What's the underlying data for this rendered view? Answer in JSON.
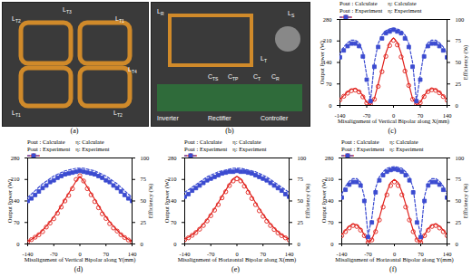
{
  "chart_data": [
    {
      "type": "line",
      "caption": "(c)",
      "x_label": "Misalignment of Vertical Bipolar along X(mm)",
      "y_label": "Output Power (W)",
      "y2_label": "Efficiency (%)",
      "xlim": [
        -140,
        140
      ],
      "xticks": [
        -140,
        -70,
        0,
        70,
        140
      ],
      "ylim": [
        0,
        280
      ],
      "yticks": [
        0,
        70,
        140,
        210,
        280
      ],
      "y2lim": [
        0,
        100
      ],
      "y2ticks": [
        0,
        25,
        50,
        75,
        100
      ],
      "x": [
        -140,
        -130,
        -120,
        -110,
        -100,
        -90,
        -80,
        -70,
        -60,
        -50,
        -40,
        -30,
        -20,
        -10,
        0,
        10,
        20,
        30,
        40,
        50,
        60,
        70,
        80,
        90,
        100,
        110,
        120,
        130,
        140
      ],
      "series": [
        {
          "name": "Pout : Calculate",
          "type": "line",
          "color": "#e0201b",
          "line_style": "solid",
          "values": [
            20,
            32,
            45,
            53,
            55,
            48,
            32,
            10,
            2,
            22,
            70,
            120,
            170,
            205,
            220,
            205,
            170,
            120,
            70,
            22,
            2,
            10,
            32,
            48,
            55,
            53,
            45,
            32,
            20
          ]
        },
        {
          "name": "η: Calculate",
          "type": "line",
          "color": "#3b4bd0",
          "line_style": "dashed",
          "axis": "y2",
          "values": [
            60,
            68,
            73,
            76,
            76,
            73,
            62,
            35,
            5,
            50,
            72,
            82,
            87,
            89,
            90,
            89,
            87,
            82,
            72,
            50,
            5,
            35,
            62,
            73,
            76,
            76,
            73,
            68,
            60
          ]
        },
        {
          "name": "Pout : Experiment",
          "type": "scatter",
          "color": "#e0201b",
          "marker": "circle_open",
          "values": [
            18,
            30,
            40,
            48,
            50,
            44,
            28,
            8,
            3,
            20,
            62,
            110,
            160,
            195,
            212,
            197,
            158,
            112,
            65,
            20,
            3,
            9,
            29,
            45,
            51,
            49,
            41,
            29,
            17
          ]
        },
        {
          "name": "η: Experiment",
          "type": "scatter",
          "color": "#3b4bd0",
          "marker": "square",
          "axis": "y2",
          "values": [
            56,
            64,
            69,
            72,
            72,
            69,
            57,
            30,
            5,
            45,
            68,
            78,
            84,
            86,
            88,
            86,
            84,
            78,
            68,
            45,
            5,
            30,
            57,
            69,
            72,
            72,
            69,
            64,
            56
          ]
        }
      ]
    },
    {
      "type": "line",
      "caption": "(d)",
      "x_label": "Misalignment of Vertical Bipolar along Y(mm)",
      "y_label": "Output Power (W)",
      "y2_label": "Efficiency (%)",
      "xlim": [
        -140,
        140
      ],
      "xticks": [
        -140,
        -70,
        0,
        70,
        140
      ],
      "ylim": [
        0,
        280
      ],
      "yticks": [
        0,
        70,
        140,
        210,
        280
      ],
      "y2lim": [
        0,
        100
      ],
      "y2ticks": [
        0,
        25,
        50,
        75,
        100
      ],
      "x": [
        -140,
        -130,
        -120,
        -110,
        -100,
        -90,
        -80,
        -70,
        -60,
        -50,
        -40,
        -30,
        -20,
        -10,
        0,
        10,
        20,
        30,
        40,
        50,
        60,
        70,
        80,
        90,
        100,
        110,
        120,
        130,
        140
      ],
      "series": [
        {
          "name": "Pout : Calculate",
          "type": "line",
          "color": "#e0201b",
          "line_style": "solid",
          "values": [
            8,
            15,
            23,
            33,
            45,
            58,
            72,
            88,
            105,
            125,
            145,
            165,
            185,
            205,
            220,
            205,
            185,
            165,
            145,
            125,
            105,
            88,
            72,
            58,
            45,
            33,
            23,
            15,
            8
          ]
        },
        {
          "name": "η: Calculate",
          "type": "line",
          "color": "#3b4bd0",
          "line_style": "dashed",
          "axis": "y2",
          "values": [
            54,
            58,
            62,
            66,
            70,
            73,
            76,
            79,
            81,
            83,
            85,
            86,
            87,
            88,
            88,
            88,
            87,
            86,
            85,
            83,
            81,
            79,
            76,
            73,
            70,
            66,
            62,
            58,
            54
          ]
        },
        {
          "name": "Pout : Experiment",
          "type": "scatter",
          "color": "#e0201b",
          "marker": "circle_open",
          "values": [
            7,
            14,
            22,
            30,
            40,
            55,
            68,
            82,
            100,
            120,
            140,
            158,
            180,
            210,
            222,
            205,
            180,
            160,
            138,
            118,
            98,
            83,
            66,
            52,
            42,
            30,
            21,
            13,
            7
          ]
        },
        {
          "name": "η: Experiment",
          "type": "scatter",
          "color": "#3b4bd0",
          "marker": "square",
          "axis": "y2",
          "values": [
            50,
            53,
            57,
            61,
            65,
            68,
            72,
            74,
            77,
            79,
            81,
            82,
            83,
            84,
            85,
            84,
            83,
            82,
            81,
            79,
            77,
            74,
            72,
            68,
            65,
            61,
            57,
            53,
            50
          ]
        }
      ]
    },
    {
      "type": "line",
      "caption": "(e)",
      "x_label": "Misalignment of Horizontal Bipolar along X(mm)",
      "y_label": "Output Power (W)",
      "y2_label": "Efficiency (%)",
      "xlim": [
        -140,
        140
      ],
      "xticks": [
        -140,
        -70,
        0,
        70,
        140
      ],
      "ylim": [
        0,
        280
      ],
      "yticks": [
        0,
        70,
        140,
        210,
        280
      ],
      "y2lim": [
        0,
        100
      ],
      "y2ticks": [
        0,
        25,
        50,
        75,
        100
      ],
      "x": [
        -140,
        -130,
        -120,
        -110,
        -100,
        -90,
        -80,
        -70,
        -60,
        -50,
        -40,
        -30,
        -20,
        -10,
        0,
        10,
        20,
        30,
        40,
        50,
        60,
        70,
        80,
        90,
        100,
        110,
        120,
        130,
        140
      ],
      "series": [
        {
          "name": "Pout : Calculate",
          "type": "line",
          "color": "#e0201b",
          "line_style": "solid",
          "values": [
            15,
            22,
            30,
            40,
            52,
            65,
            80,
            97,
            115,
            135,
            155,
            175,
            195,
            212,
            220,
            212,
            195,
            175,
            155,
            135,
            115,
            97,
            80,
            65,
            52,
            40,
            30,
            22,
            15
          ]
        },
        {
          "name": "η: Calculate",
          "type": "line",
          "color": "#3b4bd0",
          "line_style": "dashed",
          "axis": "y2",
          "values": [
            60,
            63,
            66,
            69,
            72,
            75,
            78,
            80,
            82,
            84,
            85,
            86,
            87,
            88,
            88,
            88,
            87,
            86,
            85,
            84,
            82,
            80,
            78,
            75,
            72,
            69,
            66,
            63,
            60
          ]
        },
        {
          "name": "Pout : Experiment",
          "type": "scatter",
          "color": "#e0201b",
          "marker": "circle_open",
          "values": [
            14,
            20,
            28,
            37,
            48,
            60,
            75,
            92,
            110,
            128,
            150,
            170,
            190,
            205,
            212,
            205,
            188,
            168,
            148,
            128,
            108,
            90,
            74,
            60,
            47,
            36,
            27,
            20,
            13
          ]
        },
        {
          "name": "η: Experiment",
          "type": "scatter",
          "color": "#3b4bd0",
          "marker": "square",
          "axis": "y2",
          "values": [
            55,
            58,
            62,
            65,
            68,
            71,
            74,
            76,
            78,
            80,
            82,
            83,
            84,
            84,
            85,
            84,
            84,
            83,
            82,
            80,
            78,
            76,
            74,
            71,
            68,
            65,
            62,
            58,
            55
          ]
        }
      ]
    },
    {
      "type": "line",
      "caption": "(f)",
      "x_label": "Misalignment of Horizontal Bipolar along Y(mm)",
      "y_label": "Output Power (W)",
      "y2_label": "Efficiency (%)",
      "xlim": [
        -140,
        140
      ],
      "xticks": [
        -140,
        -70,
        0,
        70,
        140
      ],
      "ylim": [
        0,
        280
      ],
      "yticks": [
        0,
        70,
        140,
        210,
        280
      ],
      "y2lim": [
        0,
        100
      ],
      "y2ticks": [
        0,
        25,
        50,
        75,
        100
      ],
      "x": [
        -140,
        -130,
        -120,
        -110,
        -100,
        -90,
        -80,
        -70,
        -60,
        -50,
        -40,
        -30,
        -20,
        -10,
        0,
        10,
        20,
        30,
        40,
        50,
        60,
        70,
        80,
        90,
        100,
        110,
        120,
        130,
        140
      ],
      "series": [
        {
          "name": "Pout : Calculate",
          "type": "line",
          "color": "#e0201b",
          "line_style": "solid",
          "values": [
            30,
            45,
            58,
            65,
            62,
            50,
            30,
            5,
            15,
            45,
            85,
            130,
            170,
            200,
            210,
            200,
            170,
            130,
            85,
            45,
            15,
            5,
            30,
            50,
            62,
            65,
            58,
            45,
            30
          ]
        },
        {
          "name": "η: Calculate",
          "type": "line",
          "color": "#3b4bd0",
          "line_style": "dashed",
          "axis": "y2",
          "values": [
            58,
            67,
            73,
            76,
            76,
            72,
            55,
            10,
            30,
            65,
            78,
            84,
            88,
            89,
            90,
            89,
            88,
            84,
            78,
            65,
            30,
            10,
            55,
            72,
            76,
            76,
            73,
            67,
            58
          ]
        },
        {
          "name": "Pout : Experiment",
          "type": "scatter",
          "color": "#e0201b",
          "marker": "circle_open",
          "values": [
            27,
            40,
            52,
            60,
            57,
            45,
            27,
            5,
            13,
            40,
            78,
            120,
            160,
            190,
            202,
            190,
            160,
            120,
            78,
            40,
            13,
            5,
            27,
            45,
            57,
            60,
            52,
            40,
            27
          ]
        },
        {
          "name": "η: Experiment",
          "type": "scatter",
          "color": "#3b4bd0",
          "marker": "square",
          "axis": "y2",
          "values": [
            54,
            63,
            69,
            72,
            72,
            68,
            50,
            8,
            25,
            60,
            74,
            80,
            84,
            86,
            87,
            86,
            84,
            80,
            74,
            60,
            25,
            8,
            50,
            68,
            72,
            72,
            69,
            63,
            54
          ]
        }
      ]
    }
  ],
  "photos": [
    {
      "caption": "(a)",
      "labels": [
        {
          "main": "L",
          "sub": "T2"
        },
        {
          "main": "L",
          "sub": "T3"
        },
        {
          "main": "L",
          "sub": "T1"
        },
        {
          "main": "L",
          "sub": "T4"
        },
        {
          "main": "L",
          "sub": "T1"
        },
        {
          "main": "L",
          "sub": "T2"
        }
      ]
    },
    {
      "caption": "(b)",
      "labels": [
        {
          "main": "L",
          "sub": "R"
        },
        {
          "main": "L",
          "sub": "T"
        },
        {
          "main": "L",
          "sub": "S"
        },
        {
          "main": "C",
          "sub": "TS"
        },
        {
          "main": "C",
          "sub": "TP"
        },
        {
          "main": "C",
          "sub": "T"
        },
        {
          "main": "C",
          "sub": "R"
        },
        {
          "main": "Inverter",
          "sub": ""
        },
        {
          "main": "Rectifier",
          "sub": ""
        },
        {
          "main": "Controller",
          "sub": ""
        }
      ]
    }
  ]
}
